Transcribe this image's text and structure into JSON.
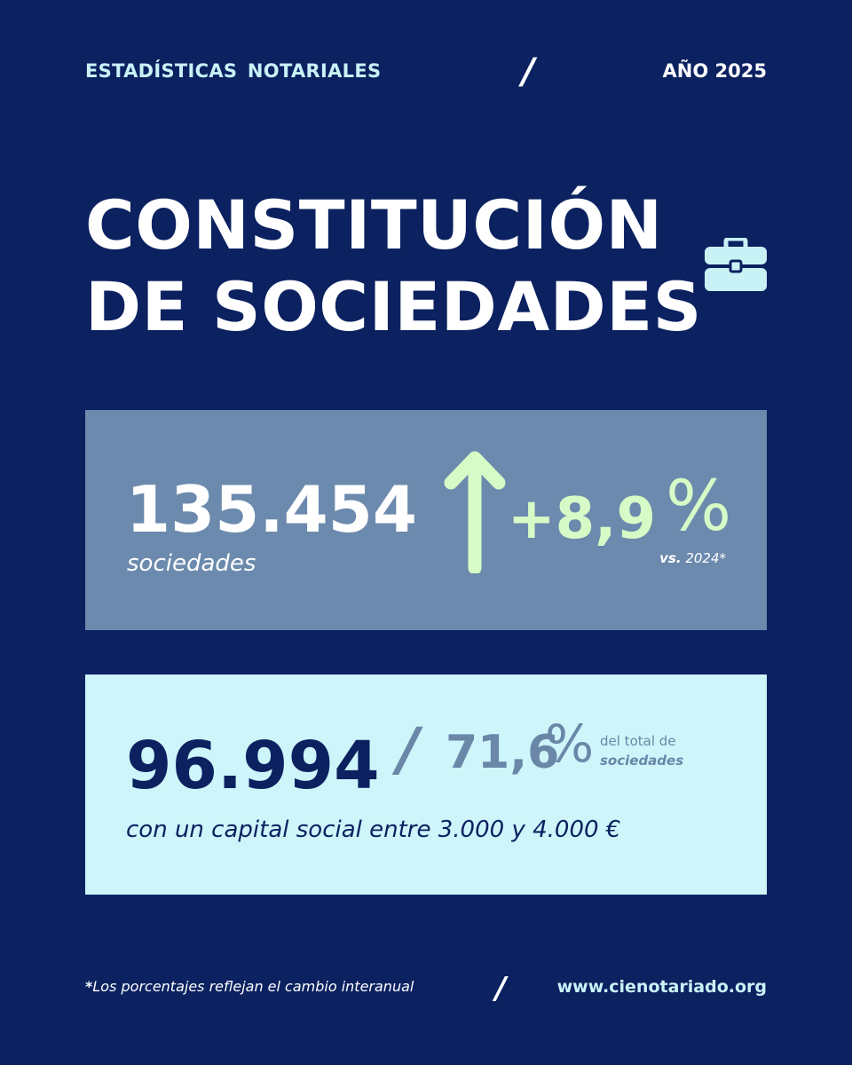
{
  "header": {
    "left_label": "ESTADÍSTICAS  NOTARIALES",
    "separator": "/",
    "right_label": "AÑO 2025"
  },
  "title": {
    "line1": "CONSTITUCIÓN",
    "line2": "DE SOCIEDADES",
    "icon": "briefcase-icon"
  },
  "card_total": {
    "value": "135.454",
    "label": "sociedades",
    "trend_icon": "arrow-up-icon",
    "change": "+8,9",
    "percent_sign": "%",
    "comparison_prefix": "vs.",
    "comparison_year": "2024*"
  },
  "card_capital": {
    "value": "96.994",
    "separator": "/",
    "share": "71,6",
    "percent_sign": "%",
    "note_line1": "del total de",
    "note_line2": "sociedades",
    "description": "con un capital social entre 3.000 y 4.000 €"
  },
  "footer": {
    "asterisk": "*",
    "note": "Los porcentajes reflejan el cambio interanual",
    "separator": "/",
    "url": "www.cienotariado.org"
  },
  "colors": {
    "background": "#0b2160",
    "card_total_bg": "#6c8aad",
    "card_capital_bg": "#cdf5fa",
    "accent_green": "#d6fbc7",
    "accent_cyan": "#c9f2f6",
    "muted_blue": "#6a87a8"
  }
}
